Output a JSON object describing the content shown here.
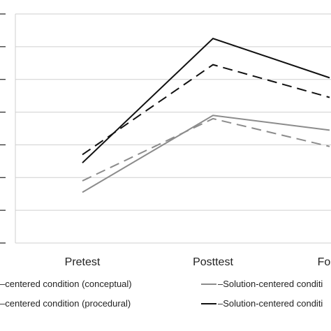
{
  "chart_data": {
    "type": "line",
    "title": "",
    "xlabel": "",
    "ylabel": "",
    "categories": [
      "Pretest",
      "Posttest",
      "Follo"
    ],
    "ylim": [
      0,
      7
    ],
    "grid": true,
    "legend_position": "bottom",
    "series": [
      {
        "name": "–centered condition (conceptual)",
        "values": [
          1.55,
          3.9,
          3.45
        ],
        "color": "#8c8c8c",
        "dash": "solid"
      },
      {
        "name": "–centered condition (procedural)",
        "values": [
          2.45,
          6.25,
          5.05
        ],
        "color": "#111111",
        "dash": "solid"
      },
      {
        "name": "–Solution-centered conditi",
        "values": [
          1.9,
          3.8,
          2.95
        ],
        "color": "#8c8c8c",
        "dash": "dashed"
      },
      {
        "name": "–Solution-centered conditi",
        "values": [
          2.7,
          5.45,
          4.45
        ],
        "color": "#111111",
        "dash": "dashed"
      }
    ]
  }
}
